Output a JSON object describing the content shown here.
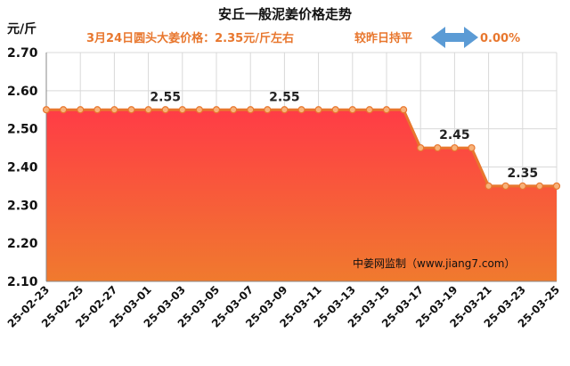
{
  "colors": {
    "area_top": "#ff3c46",
    "area_bottom": "#f07a2e",
    "line": "#e8772e",
    "marker_fill": "#f7b27a",
    "subtitle": "#e8772e",
    "arrow": "#5b9bd5",
    "grid": "#d9d9d9"
  },
  "chart_data": {
    "type": "area",
    "title": "安丘一般泥姜价格走势",
    "subtitle_price": "3月24日圆头大姜价格：2.35元/斤左右",
    "subtitle_change": "较昨日持平",
    "change_value": "0.00%",
    "change_icon": "left-right-arrow-icon",
    "ylabel": "元/斤",
    "ylim": [
      2.1,
      2.7
    ],
    "yticks": [
      "2.10",
      "2.20",
      "2.30",
      "2.40",
      "2.50",
      "2.60",
      "2.70"
    ],
    "x": [
      "25-02-23",
      "25-02-24",
      "25-02-25",
      "25-02-26",
      "25-02-27",
      "25-02-28",
      "25-03-01",
      "25-03-02",
      "25-03-03",
      "25-03-04",
      "25-03-05",
      "25-03-06",
      "25-03-07",
      "25-03-08",
      "25-03-09",
      "25-03-10",
      "25-03-11",
      "25-03-12",
      "25-03-13",
      "25-03-14",
      "25-03-15",
      "25-03-16",
      "25-03-17",
      "25-03-18",
      "25-03-19",
      "25-03-20",
      "25-03-21",
      "25-03-22",
      "25-03-23",
      "25-03-24",
      "25-03-25"
    ],
    "values": [
      2.55,
      2.55,
      2.55,
      2.55,
      2.55,
      2.55,
      2.55,
      2.55,
      2.55,
      2.55,
      2.55,
      2.55,
      2.55,
      2.55,
      2.55,
      2.55,
      2.55,
      2.55,
      2.55,
      2.55,
      2.55,
      2.55,
      2.45,
      2.45,
      2.45,
      2.45,
      2.35,
      2.35,
      2.35,
      2.35,
      2.35
    ],
    "xtick_labels": [
      "25-02-23",
      "25-02-25",
      "25-02-27",
      "25-03-01",
      "25-03-03",
      "25-03-05",
      "25-03-07",
      "25-03-09",
      "25-03-11",
      "25-03-13",
      "25-03-15",
      "25-03-17",
      "25-03-19",
      "25-03-21",
      "25-03-23",
      "25-03-25"
    ],
    "data_labels": [
      {
        "x": "25-03-02",
        "text": "2.55"
      },
      {
        "x": "25-03-09",
        "text": "2.55"
      },
      {
        "x": "25-03-19",
        "text": "2.45"
      },
      {
        "x": "25-03-23",
        "text": "2.35"
      }
    ],
    "watermark": "中姜网监制（www.jiang7.com）",
    "grid": true,
    "legend": "none"
  }
}
